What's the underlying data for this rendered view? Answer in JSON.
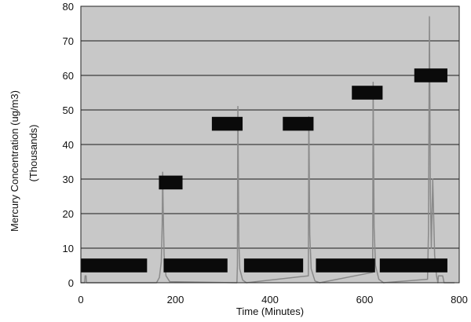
{
  "chart_data": {
    "type": "line",
    "title": "",
    "xlabel": "Time (Minutes)",
    "ylabel_line1": "Mercury Concentration (ug/m3)",
    "ylabel_line2": "(Thousands)",
    "xlim": [
      0,
      800
    ],
    "ylim": [
      0,
      80
    ],
    "x_ticks": [
      0,
      200,
      400,
      600,
      800
    ],
    "y_ticks": [
      0,
      10,
      20,
      30,
      40,
      50,
      60,
      70,
      80
    ],
    "grid": true,
    "legend": "none",
    "colors": {
      "plot_bg": "#c8c8c8",
      "line": "#8a8a8a",
      "grid": "#1a1a1a",
      "label_box": "#0a0a0a"
    },
    "series": [
      {
        "values": [
          [
            0,
            0
          ],
          [
            8,
            0
          ],
          [
            9,
            2
          ],
          [
            11,
            2
          ],
          [
            12,
            0
          ],
          [
            160,
            0
          ],
          [
            166,
            1.5
          ],
          [
            170,
            6
          ],
          [
            172,
            17
          ],
          [
            173,
            32
          ],
          [
            174,
            22
          ],
          [
            176,
            8
          ],
          [
            180,
            2
          ],
          [
            188,
            0.3
          ],
          [
            330,
            0
          ],
          [
            331,
            5
          ],
          [
            332,
            51
          ],
          [
            334,
            12
          ],
          [
            336,
            4
          ],
          [
            342,
            0.8
          ],
          [
            350,
            0
          ],
          [
            481,
            2
          ],
          [
            482,
            48
          ],
          [
            484,
            14
          ],
          [
            487,
            4
          ],
          [
            495,
            0.5
          ],
          [
            505,
            0
          ],
          [
            617,
            3
          ],
          [
            618,
            58
          ],
          [
            620,
            16
          ],
          [
            623,
            5
          ],
          [
            630,
            1
          ],
          [
            640,
            0
          ],
          [
            733,
            1
          ],
          [
            735,
            15
          ],
          [
            737,
            77
          ],
          [
            739,
            26
          ],
          [
            741,
            10
          ],
          [
            744,
            30
          ],
          [
            748,
            8
          ],
          [
            752,
            2
          ],
          [
            755,
            0
          ],
          [
            756,
            2
          ],
          [
            765,
            2
          ],
          [
            768,
            0
          ],
          [
            790,
            0
          ]
        ]
      }
    ],
    "annotation_boxes": [
      {
        "x": [
          0,
          140
        ],
        "y": [
          3,
          7
        ]
      },
      {
        "x": [
          165,
          215
        ],
        "y": [
          27,
          31
        ]
      },
      {
        "x": [
          175,
          310
        ],
        "y": [
          3,
          7
        ]
      },
      {
        "x": [
          277,
          342
        ],
        "y": [
          44,
          48
        ]
      },
      {
        "x": [
          345,
          470
        ],
        "y": [
          3,
          7
        ]
      },
      {
        "x": [
          427,
          492
        ],
        "y": [
          44,
          48
        ]
      },
      {
        "x": [
          497,
          622
        ],
        "y": [
          3,
          7
        ]
      },
      {
        "x": [
          573,
          638
        ],
        "y": [
          53,
          57
        ]
      },
      {
        "x": [
          632,
          775
        ],
        "y": [
          3,
          7
        ]
      },
      {
        "x": [
          705,
          775
        ],
        "y": [
          58,
          62
        ]
      }
    ]
  }
}
